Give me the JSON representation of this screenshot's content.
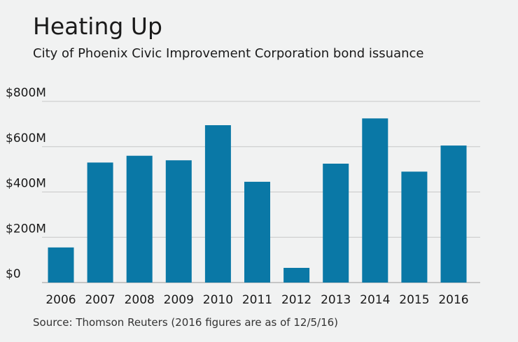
{
  "chart_data": {
    "type": "bar",
    "title": "Heating Up",
    "subtitle": "City of Phoenix Civic Improvement Corporation bond issuance",
    "source": "Source: Thomson Reuters (2016 figures are as of 12/5/16)",
    "categories": [
      "2006",
      "2007",
      "2008",
      "2009",
      "2010",
      "2011",
      "2012",
      "2013",
      "2014",
      "2015",
      "2016"
    ],
    "values": [
      155,
      530,
      560,
      540,
      695,
      445,
      65,
      525,
      725,
      490,
      605
    ],
    "y_ticks": [
      {
        "value": 0,
        "label": "$0"
      },
      {
        "value": 200,
        "label": "$200M"
      },
      {
        "value": 400,
        "label": "$400M"
      },
      {
        "value": 600,
        "label": "$600M"
      },
      {
        "value": 800,
        "label": "$800M"
      }
    ],
    "ylim": [
      0,
      800
    ],
    "grid": true,
    "bar_color": "#0a78a6",
    "grid_color": "#c8c8c8"
  }
}
